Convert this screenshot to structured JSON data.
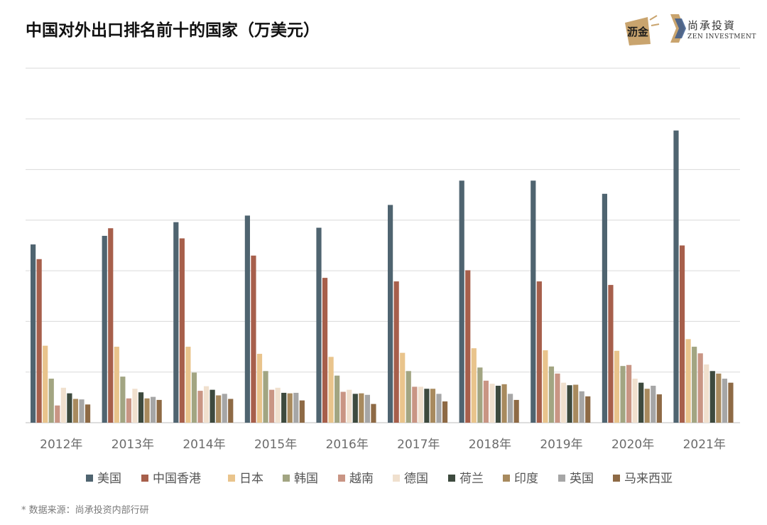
{
  "chart_data": {
    "type": "bar",
    "title": "中国对外出口排名前十的国家（万美元）",
    "categories": [
      "2012年",
      "2013年",
      "2014年",
      "2015年",
      "2016年",
      "2017年",
      "2018年",
      "2019年",
      "2020年",
      "2021年"
    ],
    "ylim": [
      0,
      70000000
    ],
    "grid": true,
    "legend_position": "bottom",
    "series": [
      {
        "name": "美国",
        "color": "#4f6470",
        "values": [
          35200000,
          36900000,
          39600000,
          40900000,
          38500000,
          43000000,
          47800000,
          47800000,
          45200000,
          57700000
        ]
      },
      {
        "name": "中国香港",
        "color": "#a75f4b",
        "values": [
          32300000,
          38400000,
          36400000,
          33000000,
          28600000,
          27900000,
          30100000,
          27900000,
          27200000,
          35000000
        ]
      },
      {
        "name": "日本",
        "color": "#e9c48c",
        "values": [
          15200000,
          15000000,
          15000000,
          13600000,
          13000000,
          13800000,
          14700000,
          14300000,
          14200000,
          16500000
        ]
      },
      {
        "name": "韩国",
        "color": "#a2a582",
        "values": [
          8700000,
          9100000,
          9900000,
          10200000,
          9300000,
          10200000,
          10900000,
          11100000,
          11200000,
          15000000
        ]
      },
      {
        "name": "越南",
        "color": "#c99584",
        "values": [
          3400000,
          4800000,
          6300000,
          6500000,
          6100000,
          7100000,
          8300000,
          9700000,
          11400000,
          13700000
        ]
      },
      {
        "name": "德国",
        "color": "#f0e0ce",
        "values": [
          6900000,
          6700000,
          7200000,
          6900000,
          6500000,
          7100000,
          7700000,
          7900000,
          8700000,
          11500000
        ]
      },
      {
        "name": "荷兰",
        "color": "#3d4a3e",
        "values": [
          5800000,
          6000000,
          6500000,
          5900000,
          5700000,
          6700000,
          7300000,
          7400000,
          7900000,
          10200000
        ]
      },
      {
        "name": "印度",
        "color": "#a88a5e",
        "values": [
          4700000,
          4800000,
          5400000,
          5800000,
          5800000,
          6700000,
          7600000,
          7500000,
          6700000,
          9700000
        ]
      },
      {
        "name": "英国",
        "color": "#a6a6a6",
        "values": [
          4600000,
          5100000,
          5700000,
          5900000,
          5500000,
          5700000,
          5700000,
          6200000,
          7300000,
          8700000
        ]
      },
      {
        "name": "马来西亚",
        "color": "#8e6a45",
        "values": [
          3600000,
          4500000,
          4700000,
          4400000,
          3700000,
          4200000,
          4500000,
          5200000,
          5600000,
          7900000
        ]
      }
    ]
  },
  "footnote": "* 数据来源：尚承投资内部行研",
  "logos": {
    "lijin_text": "沥金",
    "zen_text": "尚承投資",
    "zen_sub": "ZEN INVESTMENT"
  }
}
